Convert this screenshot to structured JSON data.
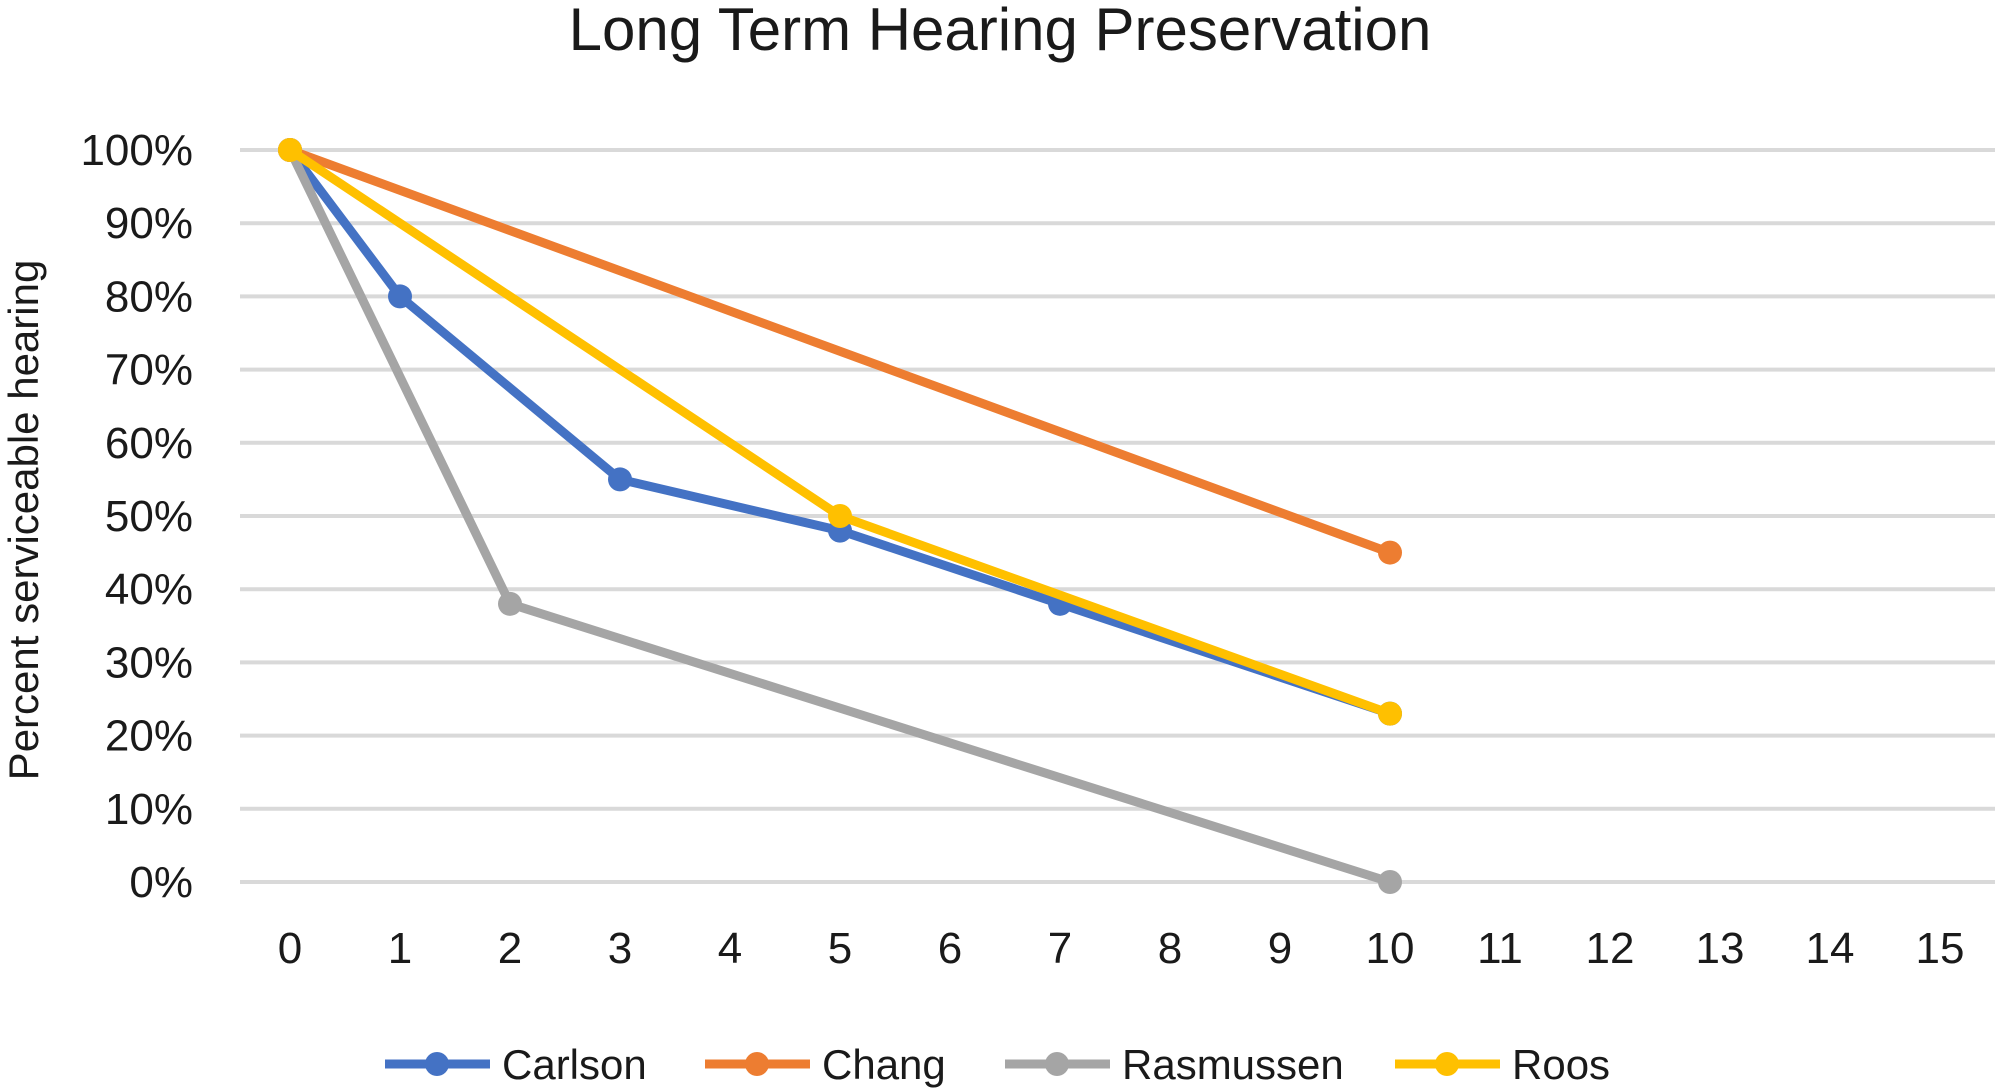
{
  "chart_data": {
    "type": "line",
    "title": "Long Term Hearing Preservation",
    "xlabel": "",
    "ylabel": "Percent serviceable hearing",
    "x_categories": [
      "0",
      "1",
      "2",
      "3",
      "4",
      "5",
      "6",
      "7",
      "8",
      "9",
      "10",
      "11",
      "12",
      "13",
      "14",
      "15"
    ],
    "y_ticks": [
      "0%",
      "10%",
      "20%",
      "30%",
      "40%",
      "50%",
      "60%",
      "70%",
      "80%",
      "90%",
      "100%"
    ],
    "ylim": [
      0,
      100
    ],
    "grid": "horizontal",
    "legend_position": "bottom",
    "series": [
      {
        "name": "Carlson",
        "color": "#4472c4",
        "points": [
          [
            0,
            100
          ],
          [
            1,
            80
          ],
          [
            3,
            55
          ],
          [
            5,
            48
          ],
          [
            7,
            38
          ],
          [
            10,
            23
          ]
        ]
      },
      {
        "name": "Chang",
        "color": "#ed7d31",
        "points": [
          [
            0,
            100
          ],
          [
            10,
            45
          ]
        ]
      },
      {
        "name": "Rasmussen",
        "color": "#a5a5a5",
        "points": [
          [
            0,
            100
          ],
          [
            2,
            38
          ],
          [
            10,
            0
          ]
        ]
      },
      {
        "name": "Roos",
        "color": "#ffc000",
        "points": [
          [
            0,
            100
          ],
          [
            5,
            50
          ],
          [
            10,
            23
          ]
        ]
      }
    ]
  }
}
